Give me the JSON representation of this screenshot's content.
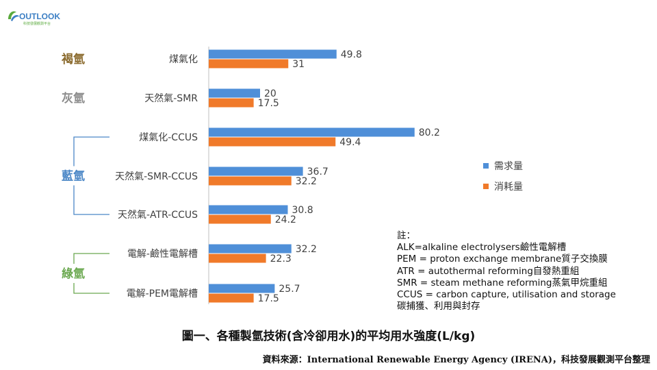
{
  "logo": {
    "text": "OUTLOOK",
    "subtitle": "科技發展觀測平台"
  },
  "groups": [
    {
      "label": "褐氫",
      "color": "#8B6B2E"
    },
    {
      "label": "灰氫",
      "color": "#8C8C8C"
    },
    {
      "label": "藍氫",
      "color": "#4A86C6"
    },
    {
      "label": "綠氫",
      "color": "#6AA84F"
    }
  ],
  "legend": [
    {
      "label": "需求量",
      "color": "#4F8FD8"
    },
    {
      "label": "消耗量",
      "color": "#F07A2A"
    }
  ],
  "notes": {
    "heading": "註：",
    "lines": [
      "ALK=alkaline electrolysers鹼性電解槽",
      "PEM = proton exchange membrane質子交換膜",
      "ATR = autothermal reforming自發熱重組",
      "SMR = steam methane reforming蒸氣甲烷重組",
      "CCUS = carbon capture, utilisation and storage",
      "碳捕獲、利用與封存"
    ]
  },
  "chart_title": "圖一、各種製氫技術(含冷卻用水)的平均用水強度(L/kg)",
  "source": "資料來源：International  Renewable Energy Agency (IRENA)，科技發展觀測平台整理",
  "chart_data": {
    "type": "bar",
    "orientation": "horizontal",
    "title": "圖一、各種製氫技術(含冷卻用水)的平均用水強度(L/kg)",
    "categories": [
      "煤氣化",
      "天然氣-SMR",
      "煤氣化-CCUS",
      "天然氣-SMR-CCUS",
      "天然氣-ATR-CCUS",
      "電解-鹼性電解槽",
      "電解-PEM電解槽"
    ],
    "category_groups": [
      0,
      1,
      2,
      2,
      2,
      3,
      3
    ],
    "series": [
      {
        "name": "需求量",
        "values": [
          49.8,
          20,
          80.2,
          36.7,
          30.8,
          32.2,
          25.7
        ]
      },
      {
        "name": "消耗量",
        "values": [
          31,
          17.5,
          49.4,
          32.2,
          24.2,
          22.3,
          17.5
        ]
      }
    ],
    "xlim": [
      0,
      100
    ],
    "legend_position": "right",
    "grid": false,
    "data_labels": true
  }
}
